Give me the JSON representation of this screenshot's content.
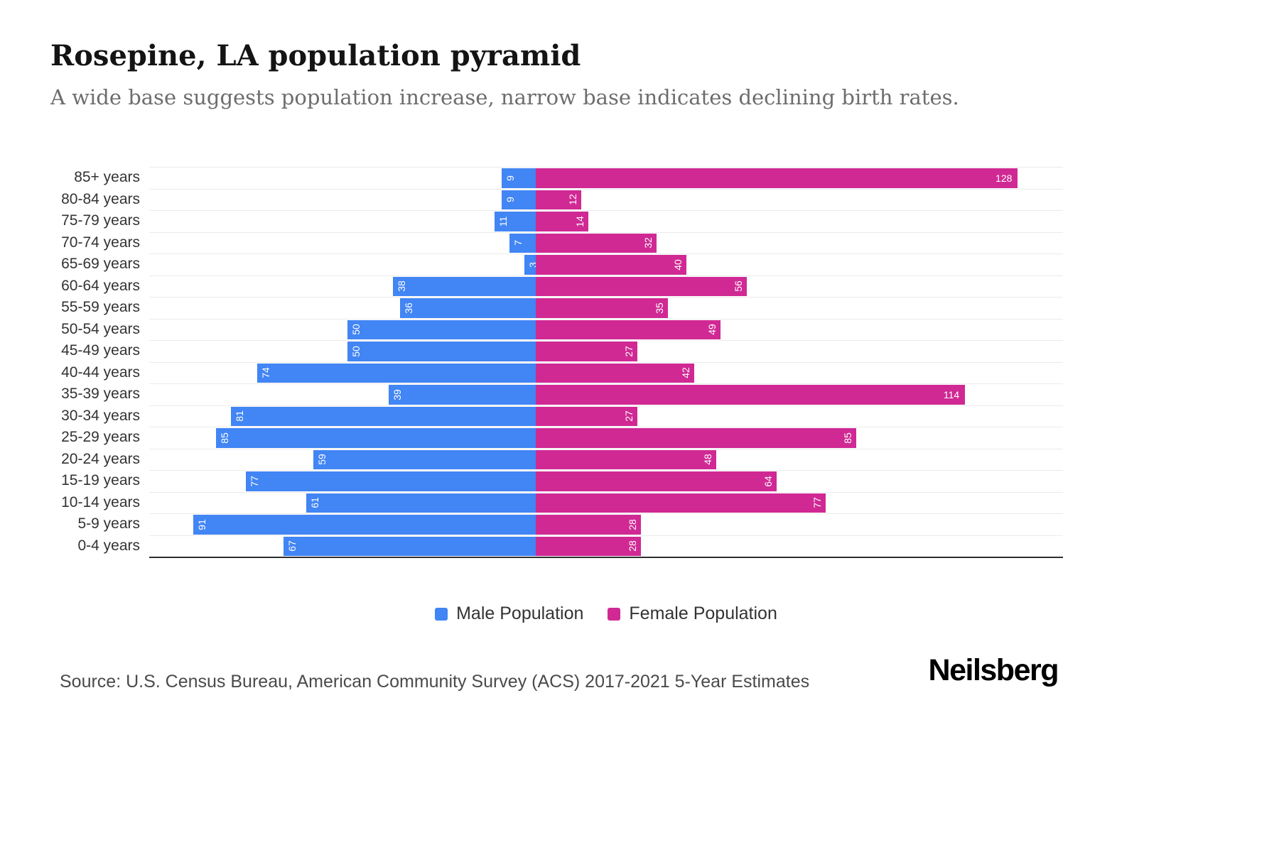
{
  "header": {
    "title": "Rosepine, LA population pyramid",
    "subtitle": "A wide base suggests population increase, narrow base indicates declining birth rates."
  },
  "chart_data": {
    "type": "bar",
    "subtype": "population-pyramid",
    "orientation": "horizontal",
    "grid": true,
    "legend_position": "bottom",
    "value_axis_visible": false,
    "value_label_color": "#ffffff",
    "categories": [
      "85+ years",
      "80-84 years",
      "75-79 years",
      "70-74 years",
      "65-69 years",
      "60-64 years",
      "55-59 years",
      "50-54 years",
      "45-49 years",
      "40-44 years",
      "35-39 years",
      "30-34 years",
      "25-29 years",
      "20-24 years",
      "15-19 years",
      "10-14 years",
      "5-9 years",
      "0-4 years"
    ],
    "series": [
      {
        "name": "Male Population",
        "side": "left",
        "color": "#4285f4",
        "values": [
          9,
          9,
          11,
          7,
          3,
          38,
          36,
          50,
          50,
          74,
          39,
          81,
          85,
          59,
          77,
          61,
          91,
          67
        ]
      },
      {
        "name": "Female Population",
        "side": "right",
        "color": "#d02994",
        "values": [
          128,
          12,
          14,
          32,
          40,
          56,
          35,
          49,
          27,
          42,
          114,
          27,
          85,
          48,
          64,
          77,
          28,
          28
        ]
      }
    ]
  },
  "footer": {
    "source": "Source: U.S. Census Bureau, American Community Survey (ACS) 2017-2021 5-Year Estimates",
    "brand": "Neilsberg"
  }
}
